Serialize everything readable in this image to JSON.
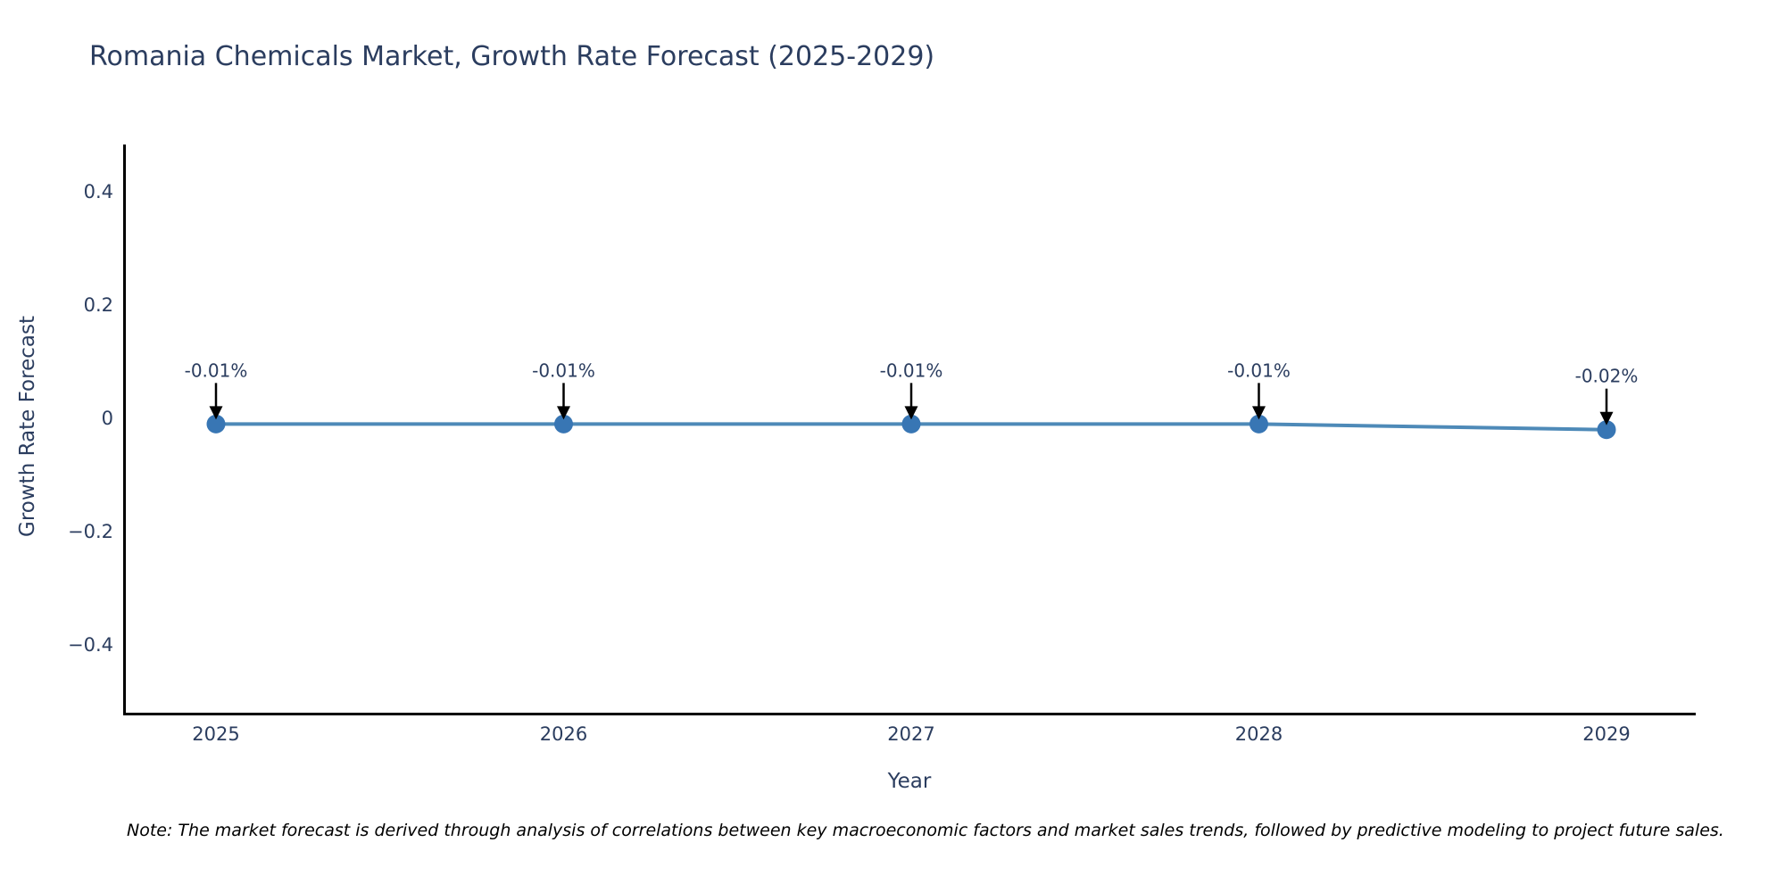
{
  "chart_data": {
    "type": "line",
    "title": "Romania Chemicals Market, Growth Rate Forecast (2025-2029)",
    "xlabel": "Year",
    "ylabel": "Growth Rate Forecast",
    "categories": [
      "2025",
      "2026",
      "2027",
      "2028",
      "2029"
    ],
    "series": [
      {
        "name": "Growth Rate Forecast",
        "values": [
          -0.01,
          -0.01,
          -0.01,
          -0.01,
          -0.02
        ],
        "point_labels": [
          "-0.01%",
          "-0.01%",
          "-0.01%",
          "-0.01%",
          "-0.02%"
        ]
      }
    ],
    "yticks": [
      {
        "label": "0.4",
        "value": 0.4
      },
      {
        "label": "0.2",
        "value": 0.2
      },
      {
        "label": "0",
        "value": 0.0
      },
      {
        "label": "−0.2",
        "value": -0.2
      },
      {
        "label": "−0.4",
        "value": -0.4
      }
    ],
    "ylim": [
      -0.52,
      0.48
    ],
    "grid": false,
    "legend": false,
    "annotation_style": "label-with-down-arrow",
    "colors": {
      "line": "#4e8ab8",
      "marker": "#3876b4",
      "axis": "#000000",
      "text": "#2b3d5f",
      "annotation_text": "#2b3d5f",
      "arrow": "#000000",
      "background": "#ffffff"
    },
    "note": "Note: The market forecast is derived through analysis of correlations between key macroeconomic factors and market sales trends, followed by predictive modeling to project future sales."
  }
}
